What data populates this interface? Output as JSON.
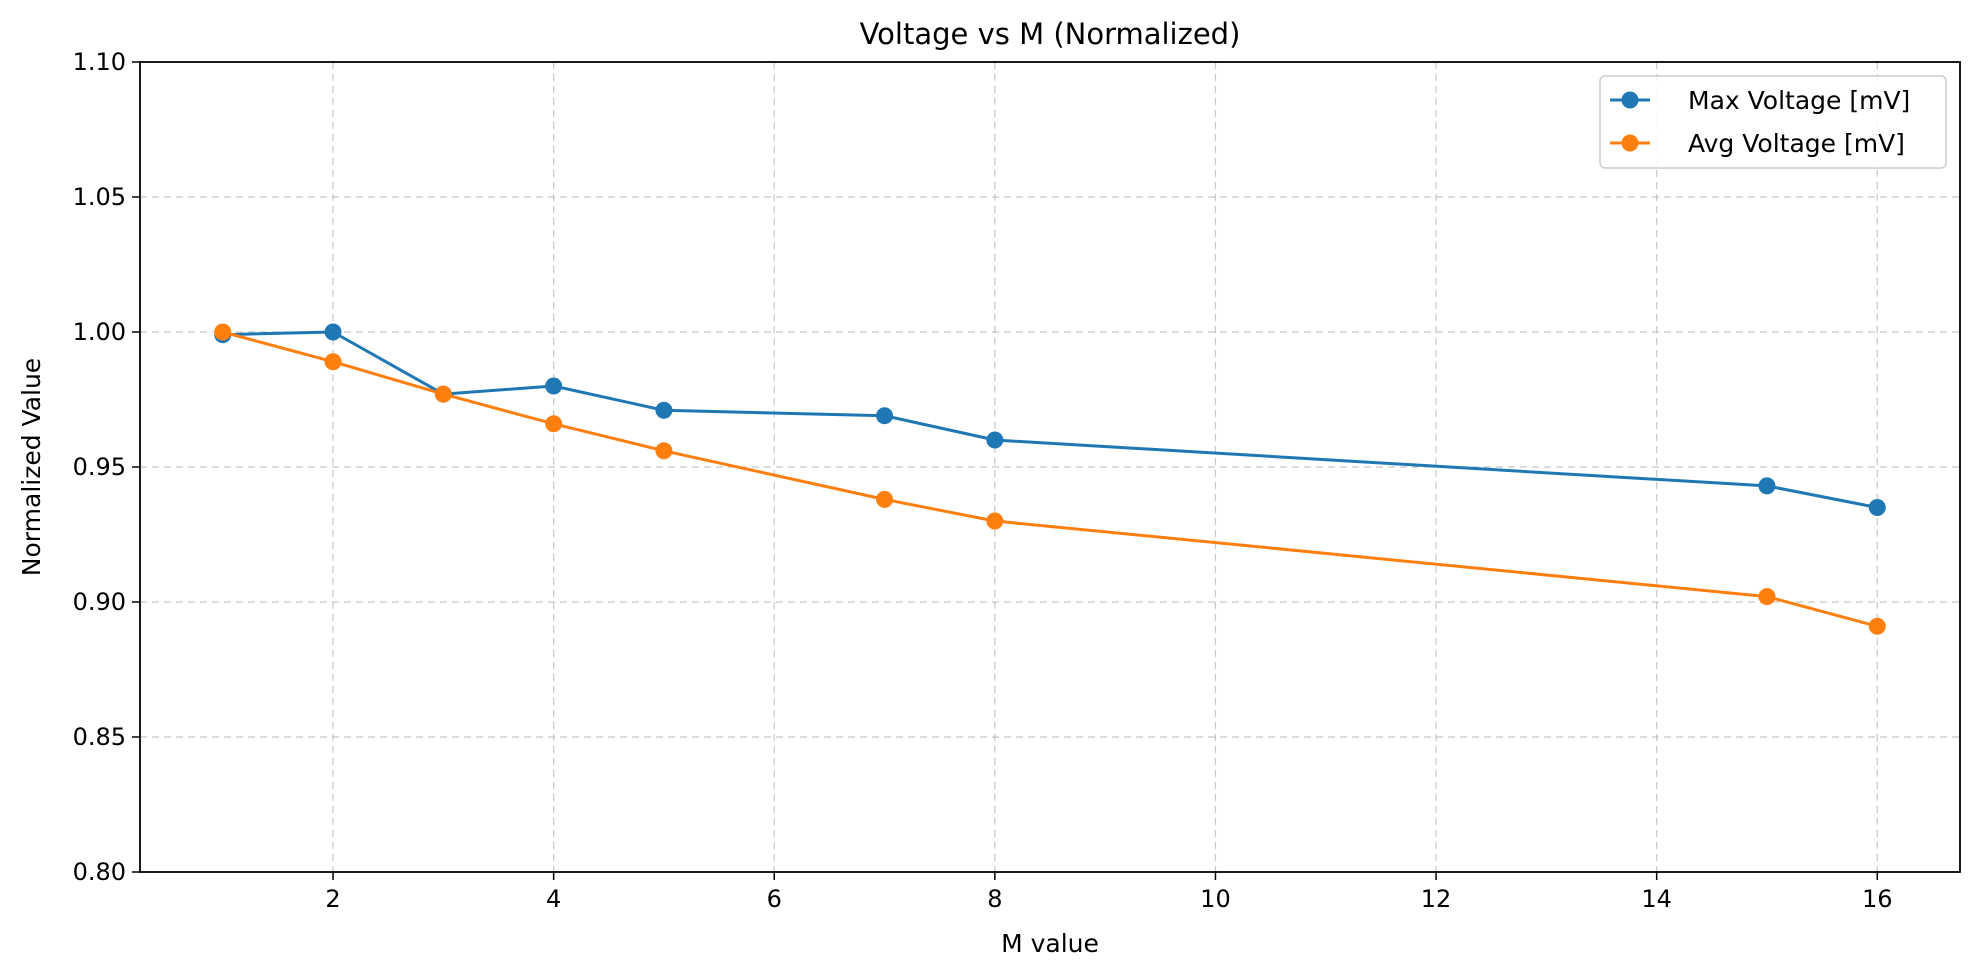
{
  "chart_data": {
    "type": "line",
    "title": "Voltage vs M (Normalized)",
    "xlabel": "M value",
    "ylabel": "Normalized Value",
    "xlim": [
      0.25,
      16.75
    ],
    "ylim": [
      0.8,
      1.1
    ],
    "xticks": [
      2,
      4,
      6,
      8,
      10,
      12,
      14,
      16
    ],
    "xtick_labels": [
      "2",
      "4",
      "6",
      "8",
      "10",
      "12",
      "14",
      "16"
    ],
    "yticks": [
      0.8,
      0.85,
      0.9,
      0.95,
      1.0,
      1.05,
      1.1
    ],
    "ytick_labels": [
      "0.80",
      "0.85",
      "0.90",
      "0.95",
      "1.00",
      "1.05",
      "1.10"
    ],
    "grid": true,
    "legend_position": "top-right",
    "x": [
      1,
      2,
      3,
      4,
      5,
      7,
      8,
      15,
      16
    ],
    "series": [
      {
        "name": "Max Voltage [mV]",
        "color": "#1f77b4",
        "values": [
          0.999,
          1.0,
          0.977,
          0.98,
          0.971,
          0.969,
          0.96,
          0.943,
          0.935
        ]
      },
      {
        "name": "Avg Voltage [mV]",
        "color": "#ff7f0e",
        "values": [
          1.0,
          0.989,
          0.977,
          0.966,
          0.956,
          0.938,
          0.93,
          0.902,
          0.891
        ]
      }
    ]
  }
}
